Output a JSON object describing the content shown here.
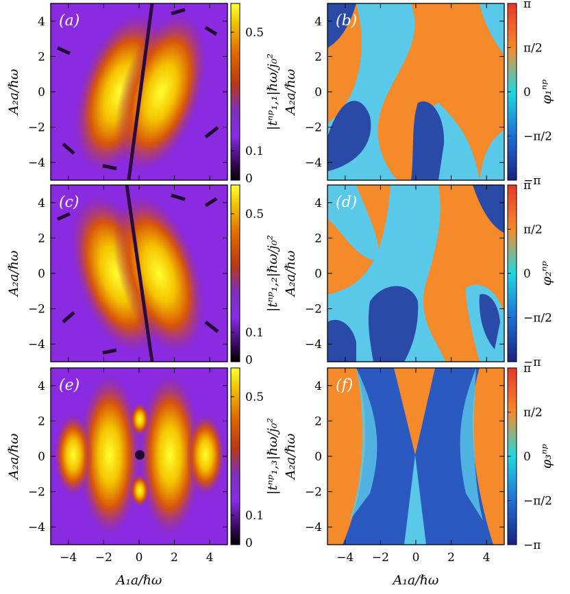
{
  "chart_data": {
    "type": "heatmap",
    "xlabel": "A₁a/ℏω",
    "ylabel": "A₂a/ℏω",
    "xlim": [
      -5,
      5
    ],
    "ylim": [
      -5,
      5
    ],
    "x_ticks": [
      "−4",
      "−2",
      "0",
      "2",
      "4"
    ],
    "y_ticks": [
      "4",
      "2",
      "0",
      "−2",
      "−4"
    ],
    "panels": [
      {
        "label": "(a)",
        "kind": "magnitude",
        "n": 1,
        "colorbar_label": "|tⁿᵖ₁,₁|ℏω/j₀²",
        "colorbar_ticks": [
          "0.5",
          "0.1",
          "0"
        ],
        "colormap": "gnuplot"
      },
      {
        "label": "(b)",
        "kind": "phase",
        "n": 1,
        "colorbar_label": "φ₁ⁿᵖ",
        "colorbar_ticks": [
          "π",
          "π/2",
          "0",
          "−π/2",
          "−π"
        ],
        "colormap": "jet"
      },
      {
        "label": "(c)",
        "kind": "magnitude",
        "n": 2,
        "colorbar_label": "|tⁿᵖ₁,₂|ℏω/j₀²",
        "colorbar_ticks": [
          "0.5",
          "0.1",
          "0"
        ],
        "colormap": "gnuplot"
      },
      {
        "label": "(d)",
        "kind": "phase",
        "n": 2,
        "colorbar_label": "φ₂ⁿᵖ",
        "colorbar_ticks": [
          "π",
          "π/2",
          "0",
          "−π/2",
          "−π"
        ],
        "colormap": "jet"
      },
      {
        "label": "(e)",
        "kind": "magnitude",
        "n": 3,
        "colorbar_label": "|tⁿᵖ₁,₃|ℏω/j₀²",
        "colorbar_ticks": [
          "0.5",
          "0.1",
          "0"
        ],
        "colormap": "gnuplot"
      },
      {
        "label": "(f)",
        "kind": "phase",
        "n": 3,
        "colorbar_label": "φ₃ⁿᵖ",
        "colorbar_ticks": [
          "π",
          "π/2",
          "0",
          "−π/2",
          "−π"
        ],
        "colormap": "jet"
      }
    ]
  }
}
